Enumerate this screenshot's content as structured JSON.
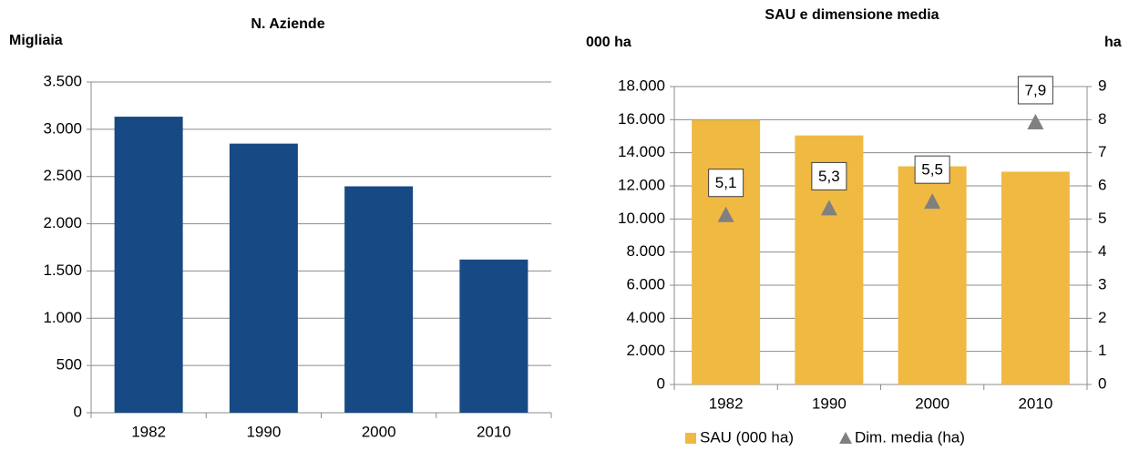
{
  "chart_data": [
    {
      "type": "bar",
      "title": "N. Aziende",
      "ylabel": "Migliaia",
      "categories": [
        "1982",
        "1990",
        "2000",
        "2010"
      ],
      "values": [
        3133,
        2848,
        2396,
        1621
      ],
      "color": "#174a84",
      "ylim": [
        0,
        3500
      ],
      "yticks": [
        0,
        500,
        {
          "value": 1000,
          "label": "1.000"
        },
        {
          "value": 1500,
          "label": "1.500"
        },
        {
          "value": 2000,
          "label": "2.000"
        },
        {
          "value": 2500,
          "label": "2.500"
        },
        {
          "value": 3000,
          "label": "3.000"
        },
        {
          "value": 3500,
          "label": "3.500"
        }
      ],
      "grid": true
    },
    {
      "type": "combo",
      "title": "SAU e dimensione media",
      "ylabel": "000 ha",
      "y2label": "ha",
      "categories": [
        "1982",
        "1990",
        "2000",
        "2010"
      ],
      "series": [
        {
          "name": "SAU (000 ha)",
          "type": "bar",
          "color": "#f0b941",
          "values": [
            15974,
            15046,
            13182,
            12856
          ]
        },
        {
          "name": "Dim. media (ha)",
          "type": "scatter",
          "marker": "triangle",
          "axis": "y2",
          "color": "#808080",
          "values": [
            5.1,
            5.3,
            5.5,
            7.9
          ],
          "value_labels": [
            "5,1",
            "5,3",
            "5,5",
            "7,9"
          ]
        }
      ],
      "ylim": [
        0,
        18000
      ],
      "yticks": [
        0,
        {
          "value": 2000,
          "label": "2.000"
        },
        {
          "value": 4000,
          "label": "4.000"
        },
        {
          "value": 6000,
          "label": "6.000"
        },
        {
          "value": 8000,
          "label": "8.000"
        },
        {
          "value": 10000,
          "label": "10.000"
        },
        {
          "value": 12000,
          "label": "12.000"
        },
        {
          "value": 14000,
          "label": "14.000"
        },
        {
          "value": 16000,
          "label": "16.000"
        },
        {
          "value": 18000,
          "label": "18.000"
        }
      ],
      "y2lim": [
        0,
        9
      ],
      "y2ticks": [
        0,
        1,
        2,
        3,
        4,
        5,
        6,
        7,
        8,
        9
      ],
      "grid": true,
      "legend": "bottom"
    }
  ]
}
